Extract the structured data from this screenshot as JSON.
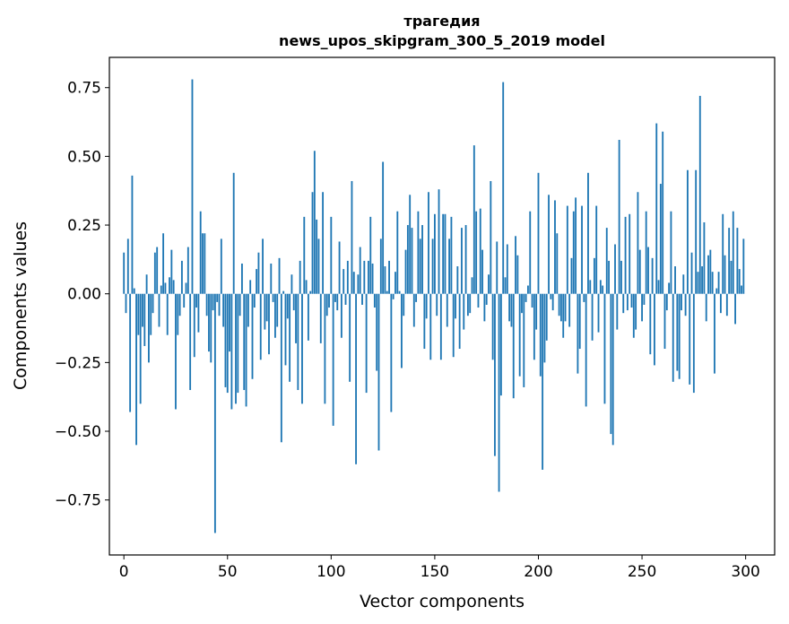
{
  "chart_data": {
    "type": "bar",
    "title": "трагедия",
    "subtitle": "news_upos_skipgram_300_5_2019 model",
    "xlabel": "Vector components",
    "ylabel": "Components values",
    "xlim": [
      -7,
      314
    ],
    "ylim": [
      -0.95,
      0.86
    ],
    "xticks": [
      0,
      50,
      100,
      150,
      200,
      250,
      300
    ],
    "yticks": [
      -0.75,
      -0.5,
      -0.25,
      0.0,
      0.25,
      0.5,
      0.75
    ],
    "ytick_labels": [
      "−0.75",
      "−0.50",
      "−0.25",
      "0.00",
      "0.25",
      "0.50",
      "0.75"
    ],
    "bar_color": "#1f77b4",
    "grid": false,
    "legend": false,
    "values": [
      0.15,
      -0.07,
      0.2,
      -0.43,
      0.43,
      0.02,
      -0.55,
      -0.15,
      -0.4,
      -0.12,
      -0.19,
      0.07,
      -0.25,
      -0.15,
      -0.07,
      0.15,
      0.17,
      -0.12,
      0.03,
      0.22,
      0.04,
      -0.15,
      0.06,
      0.16,
      0.05,
      -0.42,
      -0.15,
      -0.08,
      0.12,
      -0.05,
      0.04,
      0.17,
      -0.35,
      0.78,
      -0.23,
      -0.05,
      -0.14,
      0.3,
      0.22,
      0.22,
      -0.08,
      -0.21,
      -0.25,
      -0.06,
      -0.87,
      -0.03,
      -0.08,
      0.2,
      -0.12,
      -0.34,
      -0.36,
      -0.21,
      -0.42,
      0.44,
      -0.4,
      -0.36,
      -0.08,
      0.11,
      -0.35,
      -0.41,
      -0.12,
      0.05,
      -0.31,
      -0.05,
      0.09,
      0.15,
      -0.24,
      0.2,
      -0.13,
      -0.1,
      -0.22,
      0.11,
      -0.03,
      -0.16,
      -0.12,
      0.13,
      -0.54,
      0.01,
      -0.26,
      -0.09,
      -0.32,
      0.07,
      -0.06,
      -0.18,
      -0.35,
      0.12,
      -0.4,
      0.28,
      0.05,
      -0.17,
      0.01,
      0.37,
      0.52,
      0.27,
      0.2,
      -0.18,
      0.37,
      -0.4,
      -0.08,
      -0.05,
      0.28,
      -0.48,
      -0.03,
      -0.06,
      0.19,
      -0.16,
      0.09,
      -0.04,
      0.12,
      -0.32,
      0.41,
      0.08,
      -0.62,
      0.07,
      0.17,
      -0.04,
      0.12,
      -0.36,
      0.12,
      0.28,
      0.11,
      -0.05,
      -0.28,
      -0.57,
      0.2,
      0.48,
      0.1,
      0.01,
      0.12,
      -0.43,
      -0.02,
      0.08,
      0.3,
      0.01,
      -0.27,
      -0.08,
      0.16,
      0.25,
      0.36,
      0.24,
      -0.12,
      -0.03,
      0.3,
      0.2,
      0.25,
      -0.2,
      -0.09,
      0.37,
      -0.24,
      0.2,
      0.29,
      -0.08,
      0.38,
      -0.24,
      0.29,
      0.29,
      -0.12,
      0.2,
      0.28,
      -0.23,
      -0.09,
      0.1,
      -0.2,
      0.24,
      -0.13,
      0.25,
      -0.08,
      -0.07,
      0.06,
      0.54,
      0.3,
      -0.05,
      0.31,
      0.16,
      -0.1,
      -0.04,
      0.07,
      0.41,
      -0.24,
      -0.59,
      0.19,
      -0.72,
      -0.37,
      0.77,
      0.06,
      0.18,
      -0.1,
      -0.12,
      -0.38,
      0.21,
      0.14,
      -0.3,
      -0.07,
      -0.34,
      -0.03,
      0.03,
      0.3,
      -0.05,
      -0.24,
      -0.13,
      0.44,
      -0.3,
      -0.64,
      -0.25,
      -0.17,
      0.36,
      -0.02,
      -0.06,
      0.34,
      0.22,
      -0.08,
      -0.1,
      -0.16,
      -0.1,
      0.32,
      -0.12,
      0.13,
      0.3,
      0.35,
      -0.29,
      -0.2,
      0.32,
      -0.03,
      -0.41,
      0.44,
      0.05,
      -0.17,
      0.13,
      0.32,
      -0.14,
      0.05,
      0.03,
      -0.4,
      0.24,
      0.12,
      -0.51,
      -0.55,
      0.18,
      -0.13,
      0.56,
      0.12,
      -0.07,
      0.28,
      -0.06,
      0.29,
      -0.05,
      -0.16,
      -0.13,
      0.37,
      0.16,
      -0.1,
      -0.04,
      0.3,
      0.17,
      -0.22,
      0.13,
      -0.26,
      0.62,
      0.05,
      0.4,
      0.59,
      -0.2,
      -0.06,
      0.04,
      0.3,
      -0.32,
      0.1,
      -0.28,
      -0.31,
      -0.06,
      0.07,
      -0.08,
      0.45,
      -0.33,
      0.15,
      -0.36,
      0.45,
      0.08,
      0.72,
      0.1,
      0.26,
      -0.1,
      0.14,
      0.16,
      0.08,
      -0.29,
      0.02,
      0.08,
      -0.07,
      0.29,
      0.14,
      -0.08,
      0.24,
      0.12,
      0.3,
      -0.11,
      0.24,
      0.09,
      0.03,
      0.2,
      0.0
    ]
  }
}
